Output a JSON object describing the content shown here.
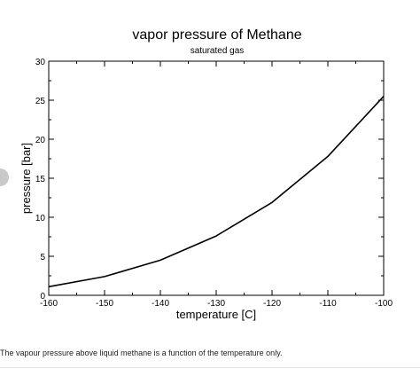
{
  "chart_data": {
    "type": "line",
    "title": "vapor pressure of Methane",
    "subtitle": "saturated gas",
    "xlabel": "temperature [C]",
    "ylabel": "pressure [bar]",
    "xlim": [
      -160,
      -100
    ],
    "ylim": [
      0,
      30
    ],
    "xticks": [
      -160,
      -150,
      -140,
      -130,
      -120,
      -110,
      -100
    ],
    "yticks": [
      0,
      5,
      10,
      15,
      20,
      25,
      30
    ],
    "grid": false,
    "series": [
      {
        "color": "#000000",
        "x": [
          -160,
          -150,
          -140,
          -130,
          -120,
          -110,
          -100
        ],
        "y": [
          1.1,
          2.4,
          4.5,
          7.6,
          11.9,
          17.8,
          25.5
        ]
      }
    ]
  },
  "caption": "The vapour pressure above liquid methane is a function of the temperature only."
}
